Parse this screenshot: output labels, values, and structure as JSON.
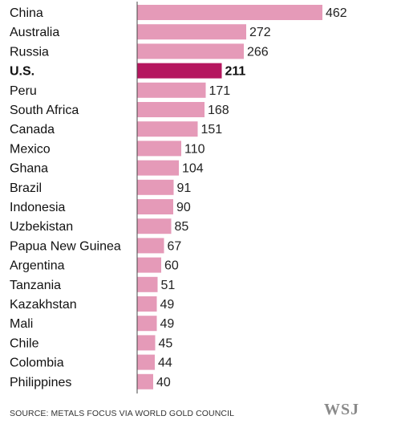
{
  "chart_data": {
    "type": "bar",
    "orientation": "horizontal",
    "categories": [
      "China",
      "Australia",
      "Russia",
      "U.S.",
      "Peru",
      "South Africa",
      "Canada",
      "Mexico",
      "Ghana",
      "Brazil",
      "Indonesia",
      "Uzbekistan",
      "Papua New Guinea",
      "Argentina",
      "Tanzania",
      "Kazakhstan",
      "Mali",
      "Chile",
      "Colombia",
      "Philippines"
    ],
    "values": [
      462,
      272,
      266,
      211,
      171,
      168,
      151,
      110,
      104,
      91,
      90,
      85,
      67,
      60,
      51,
      49,
      49,
      45,
      44,
      40
    ],
    "highlight": "U.S.",
    "colors": {
      "bar": "#e59ab8",
      "highlight": "#b5175f",
      "axis": "#444444"
    },
    "data_labels": true,
    "grid": false,
    "xlim": [
      0,
      462
    ]
  },
  "source": "SOURCE: METALS FOCUS VIA WORLD GOLD COUNCIL",
  "brand": "WSJ"
}
